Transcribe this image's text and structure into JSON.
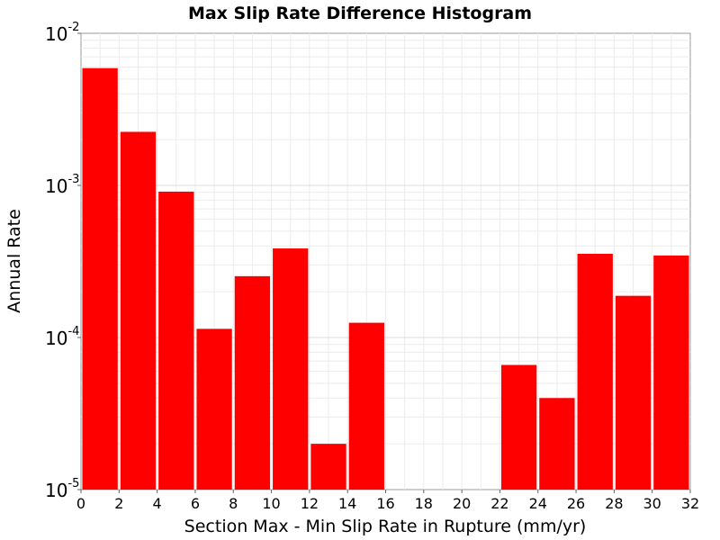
{
  "chart_data": {
    "type": "bar",
    "title": "Max Slip Rate Difference Histogram",
    "xlabel": "Section Max - Min Slip Rate in Rupture (mm/yr)",
    "ylabel": "Annual Rate",
    "yscale": "log",
    "xlim": [
      0,
      32
    ],
    "ylim": [
      1e-05,
      0.01
    ],
    "xticks": [
      "0",
      "2",
      "4",
      "6",
      "8",
      "10",
      "12",
      "14",
      "16",
      "18",
      "20",
      "22",
      "24",
      "26",
      "28",
      "30",
      "32"
    ],
    "yticks": [
      {
        "base": "10",
        "exp": "-5",
        "value": 1e-05
      },
      {
        "base": "10",
        "exp": "-4",
        "value": 0.0001
      },
      {
        "base": "10",
        "exp": "-3",
        "value": 0.001
      },
      {
        "base": "10",
        "exp": "-2",
        "value": 0.01
      }
    ],
    "bin_width": 2,
    "bin_centers": [
      1,
      3,
      5,
      7,
      9,
      11,
      13,
      15,
      17,
      19,
      21,
      23,
      25,
      27,
      29,
      31
    ],
    "values": [
      0.0059,
      0.00225,
      0.00091,
      0.000114,
      0.000253,
      0.000385,
      2e-05,
      0.000125,
      null,
      null,
      null,
      6.6e-05,
      4e-05,
      0.000355,
      0.000188,
      0.000346
    ],
    "bar_color": "#ff0000",
    "grid": true
  }
}
